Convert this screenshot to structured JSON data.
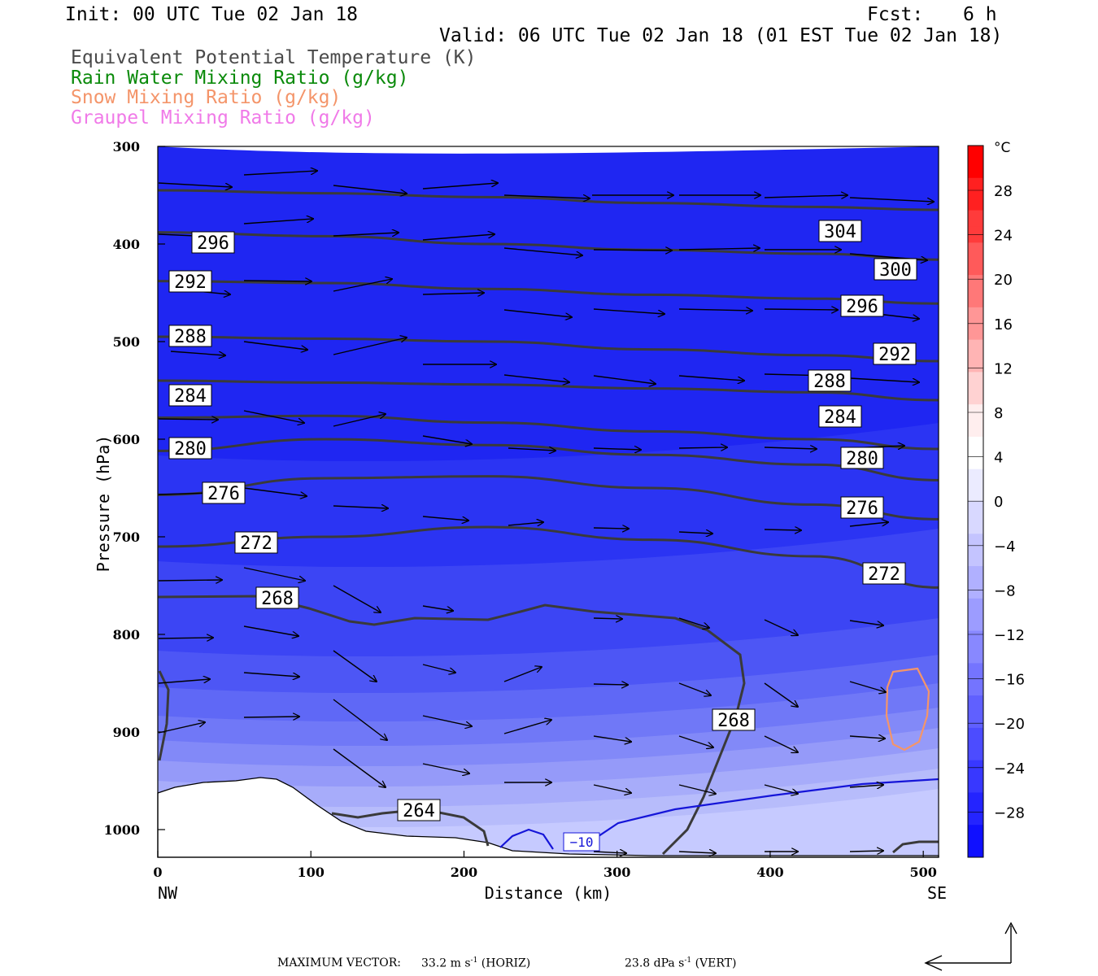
{
  "header": {
    "init": "Init: 00 UTC Tue 02 Jan 18",
    "fcst_label": "Fcst:",
    "fcst_value": "6 h",
    "valid": "Valid: 06 UTC Tue 02 Jan 18 (01 EST Tue 02 Jan 18)"
  },
  "legend": [
    {
      "label": "Equivalent Potential Temperature (K)",
      "color": "#4a4a4a"
    },
    {
      "label": "Rain Water Mixing Ratio (g/kg)",
      "color": "#0a8a0a"
    },
    {
      "label": "Snow Mixing Ratio (g/kg)",
      "color": "#f4956a"
    },
    {
      "label": "Graupel Mixing Ratio (g/kg)",
      "color": "#f07ae8"
    }
  ],
  "chart_data": {
    "type": "contour",
    "xlabel": "Distance (km)",
    "ylabel": "Pressure (hPa)",
    "xlim": [
      0,
      510
    ],
    "ylim": [
      1025,
      300
    ],
    "x_ticks": [
      "0",
      "100",
      "200",
      "300",
      "400",
      "500"
    ],
    "x_tick_values": [
      0,
      100,
      200,
      300,
      400,
      500
    ],
    "y_ticks": [
      "300",
      "400",
      "500",
      "600",
      "700",
      "800",
      "900",
      "1000"
    ],
    "y_tick_values": [
      300,
      400,
      500,
      600,
      700,
      800,
      900,
      1000
    ],
    "x_end_labels": {
      "left": "NW",
      "right": "SE"
    },
    "colorbar": {
      "unit": "°C",
      "labels": [
        "28",
        "24",
        "20",
        "16",
        "12",
        "8",
        "4",
        "0",
        "−4",
        "−8",
        "−12",
        "−16",
        "−20",
        "−24",
        "−28"
      ],
      "values": [
        28,
        24,
        20,
        16,
        12,
        8,
        4,
        0,
        -4,
        -8,
        -12,
        -16,
        -20,
        -24,
        -28
      ]
    },
    "theta_e_contours": [
      {
        "level": 304,
        "label": "304",
        "y": [
          345,
          348,
          352,
          358,
          362,
          365
        ]
      },
      {
        "level": 300,
        "label": "300",
        "y": [
          388,
          392,
          400,
          406,
          410,
          416
        ]
      },
      {
        "level": 296,
        "label": "296",
        "y": [
          438,
          440,
          446,
          452,
          456,
          461
        ]
      },
      {
        "level": 292,
        "label": "292",
        "y": [
          495,
          497,
          500,
          508,
          514,
          520
        ]
      },
      {
        "level": 288,
        "label": "288",
        "y": [
          540,
          542,
          544,
          548,
          552,
          560
        ]
      },
      {
        "level": 284,
        "label": "284",
        "y": [
          578,
          576,
          583,
          592,
          600,
          610
        ]
      },
      {
        "level": 280,
        "label": "280",
        "y": [
          612,
          600,
          606,
          616,
          626,
          642
        ]
      },
      {
        "level": 276,
        "label": "276",
        "y": [
          657,
          640,
          638,
          650,
          667,
          682
        ]
      },
      {
        "level": 272,
        "label": "272",
        "y": [
          710,
          700,
          690,
          703,
          720,
          752
        ]
      },
      {
        "level": 268,
        "label": "268",
        "y": [
          762,
          766,
          770,
          776
        ]
      },
      {
        "level": 264,
        "label": "264",
        "y": [
          983
        ]
      }
    ],
    "temperature_contour": {
      "label": "−10",
      "color": "#1010d0"
    },
    "annotations": {
      "max_vector_label": "MAXIMUM VECTOR:",
      "max_horiz_value": "33.2 m s",
      "max_horiz_sup": "-1",
      "max_horiz_tag": "(HORIZ)",
      "max_vert_value": "23.8 dPa s",
      "max_vert_sup": "-1",
      "max_vert_tag": "(VERT)"
    }
  }
}
